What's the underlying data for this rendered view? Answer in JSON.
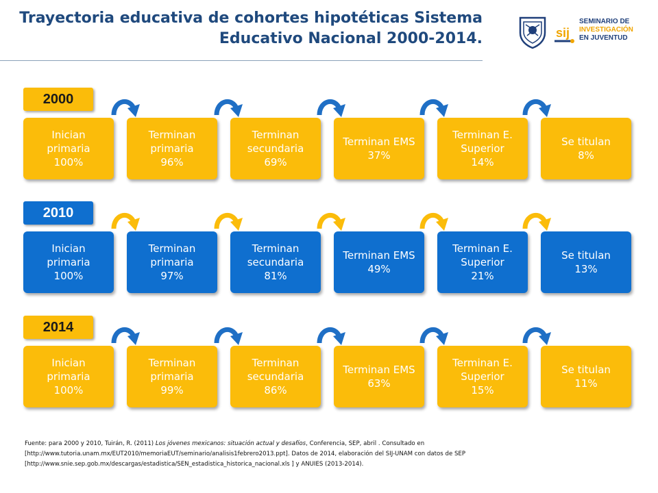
{
  "title": "Trayectoria educativa de cohortes hipotéticas Sistema Educativo Nacional 2000-2014.",
  "logo": {
    "sij_lines": [
      "SEMINARIO DE",
      "INVESTIGACIÓN",
      "EN JUVENTUD"
    ],
    "sij_mark": "sij"
  },
  "colors": {
    "gold": "#fbbc0a",
    "blue": "#0f6fcf",
    "arrow_blue": "#1f6fc5",
    "title": "#1f497d"
  },
  "rows": [
    {
      "year": "2000",
      "year_style": "gold",
      "box_style": "gold",
      "arrow_style": "blue",
      "stages": [
        {
          "label": "Inician\nprimaria\n100%"
        },
        {
          "label": "Terminan\nprimaria\n96%"
        },
        {
          "label": "Terminan\nsecundaria\n69%"
        },
        {
          "label": "Terminan EMS\n37%"
        },
        {
          "label": "Terminan E.\nSuperior\n14%"
        },
        {
          "label": "Se titulan\n8%"
        }
      ]
    },
    {
      "year": "2010",
      "year_style": "blue",
      "box_style": "blue",
      "arrow_style": "gold",
      "stages": [
        {
          "label": "Inician\nprimaria\n100%"
        },
        {
          "label": "Terminan\nprimaria\n97%"
        },
        {
          "label": "Terminan\nsecundaria\n81%"
        },
        {
          "label": "Terminan EMS\n49%"
        },
        {
          "label": "Terminan E.\nSuperior\n21%"
        },
        {
          "label": "Se titulan\n13%"
        }
      ]
    },
    {
      "year": "2014",
      "year_style": "gold",
      "box_style": "gold",
      "arrow_style": "blue",
      "stages": [
        {
          "label": "Inician\nprimaria\n100%"
        },
        {
          "label": "Terminan\nprimaria\n99%"
        },
        {
          "label": "Terminan\nsecundaria\n86%"
        },
        {
          "label": "Terminan EMS\n63%"
        },
        {
          "label": "Terminan E.\nSuperior\n15%"
        },
        {
          "label": "Se titulan\n11%"
        }
      ]
    }
  ],
  "source": {
    "prefix": "Fuente: para 2000 y 2010, Tuirán, R. (2011) ",
    "italic": "Los jóvenes mexicanos: situación actual y desafíos",
    "suffix": ", Conferencia, SEP, abril . Consultado en",
    "line2": "[http://www.tutoria.unam.mx/EUT2010/memoriaEUT/seminario/analisis1febrero2013.ppt]. Datos de 2014, elaboración del SIJ-UNAM con datos de SEP",
    "line3": "[http://www.snie.sep.gob.mx/descargas/estadistica/SEN_estadistica_historica_nacional.xls ] y ANUIES (2013-2014)."
  }
}
